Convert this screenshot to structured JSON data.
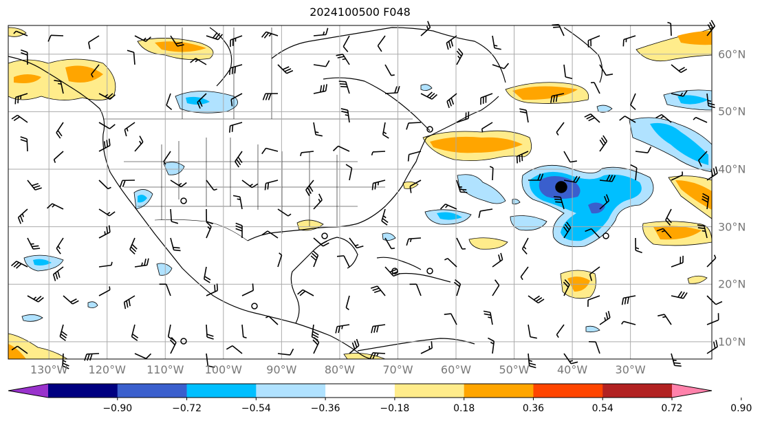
{
  "title": "2024100500 F048",
  "map": {
    "projection": "plate-carree",
    "lon_range": [
      -137,
      -16
    ],
    "lat_range": [
      7,
      65
    ],
    "lon_labels": [
      "130°W",
      "120°W",
      "110°W",
      "100°W",
      "90°W",
      "80°W",
      "70°W",
      "60°W",
      "50°W",
      "40°W",
      "30°W"
    ],
    "lat_labels": [
      "60°N",
      "50°N",
      "40°N",
      "30°N",
      "20°N",
      "10°N"
    ],
    "gridlines": true,
    "overlay": "wind barbs"
  },
  "colorbar": {
    "tick_labels": [
      "−0.90",
      "−0.72",
      "−0.54",
      "−0.36",
      "−0.18",
      "0.18",
      "0.36",
      "0.54",
      "0.72",
      "0.90"
    ],
    "colors": [
      "#9932cc",
      "#000080",
      "#3a5fcd",
      "#00bfff",
      "#b0e2ff",
      "#ffffff",
      "#ffec8b",
      "#ffa500",
      "#ff4500",
      "#b22222",
      "#ff82ab"
    ],
    "extend": "both"
  }
}
